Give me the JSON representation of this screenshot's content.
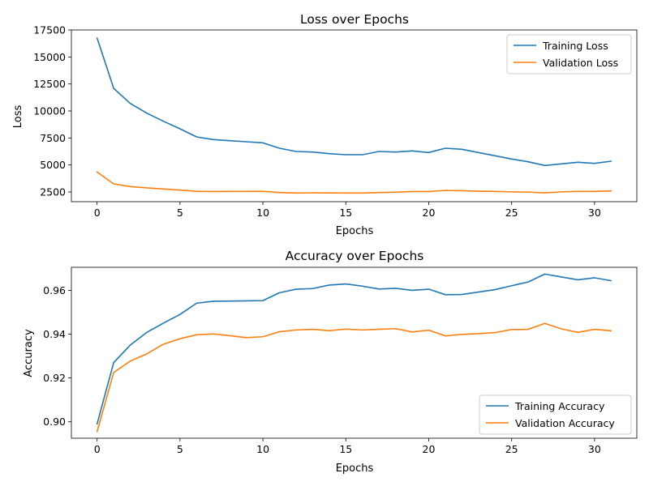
{
  "chart_data": [
    {
      "type": "line",
      "title": "Loss over Epochs",
      "xlabel": "Epochs",
      "ylabel": "Loss",
      "xlim": [
        -1.55,
        32.55
      ],
      "ylim": [
        1600,
        17500
      ],
      "xticks": [
        0,
        5,
        10,
        15,
        20,
        25,
        30
      ],
      "yticks": [
        2500,
        5000,
        7500,
        10000,
        12500,
        15000,
        17500
      ],
      "legend": "top-right",
      "x": [
        0,
        1,
        2,
        3,
        4,
        5,
        6,
        7,
        8,
        9,
        10,
        11,
        12,
        13,
        14,
        15,
        16,
        17,
        18,
        19,
        20,
        21,
        22,
        23,
        24,
        25,
        26,
        27,
        28,
        29,
        30,
        31
      ],
      "series": [
        {
          "name": "Training Loss",
          "color": "#1f77b4",
          "values": [
            16750,
            12100,
            10700,
            9800,
            9050,
            8350,
            7600,
            7350,
            7250,
            7150,
            7050,
            6550,
            6250,
            6200,
            6050,
            5950,
            5950,
            6250,
            6200,
            6300,
            6150,
            6550,
            6450,
            6150,
            5850,
            5550,
            5300,
            4950,
            5100,
            5250,
            5150,
            5350
          ]
        },
        {
          "name": "Validation Loss",
          "color": "#ff7f0e",
          "values": [
            4350,
            3250,
            3000,
            2880,
            2780,
            2670,
            2560,
            2540,
            2550,
            2550,
            2560,
            2450,
            2400,
            2420,
            2410,
            2400,
            2400,
            2450,
            2480,
            2540,
            2540,
            2640,
            2620,
            2570,
            2550,
            2510,
            2490,
            2420,
            2510,
            2550,
            2550,
            2600
          ]
        }
      ]
    },
    {
      "type": "line",
      "title": "Accuracy over Epochs",
      "xlabel": "Epochs",
      "ylabel": "Accuracy",
      "xlim": [
        -1.55,
        32.55
      ],
      "ylim": [
        0.8925,
        0.9705
      ],
      "xticks": [
        0,
        5,
        10,
        15,
        20,
        25,
        30
      ],
      "yticks": [
        0.9,
        0.92,
        0.94,
        0.96
      ],
      "yticklabels": [
        "0.90",
        "0.92",
        "0.94",
        "0.96"
      ],
      "legend": "bottom-right",
      "x": [
        0,
        1,
        2,
        3,
        4,
        5,
        6,
        7,
        8,
        9,
        10,
        11,
        12,
        13,
        14,
        15,
        16,
        17,
        18,
        19,
        20,
        21,
        22,
        23,
        24,
        25,
        26,
        27,
        28,
        29,
        30,
        31
      ],
      "series": [
        {
          "name": "Training Accuracy",
          "color": "#1f77b4",
          "values": [
            0.899,
            0.927,
            0.935,
            0.9408,
            0.945,
            0.949,
            0.9541,
            0.955,
            0.9551,
            0.9552,
            0.9553,
            0.9589,
            0.9605,
            0.9608,
            0.9624,
            0.9629,
            0.9619,
            0.9606,
            0.9609,
            0.96,
            0.9605,
            0.958,
            0.9581,
            0.9592,
            0.9603,
            0.9621,
            0.9638,
            0.9674,
            0.9661,
            0.9648,
            0.9657,
            0.9644
          ]
        },
        {
          "name": "Validation Accuracy",
          "color": "#ff7f0e",
          "values": [
            0.8955,
            0.9225,
            0.9277,
            0.931,
            0.9354,
            0.9379,
            0.9397,
            0.9401,
            0.9393,
            0.9384,
            0.9388,
            0.9411,
            0.9419,
            0.9422,
            0.9416,
            0.9423,
            0.9419,
            0.9422,
            0.9425,
            0.941,
            0.9418,
            0.9392,
            0.9399,
            0.9402,
            0.9407,
            0.9421,
            0.9422,
            0.9449,
            0.9424,
            0.9408,
            0.9422,
            0.9415
          ]
        }
      ]
    }
  ]
}
